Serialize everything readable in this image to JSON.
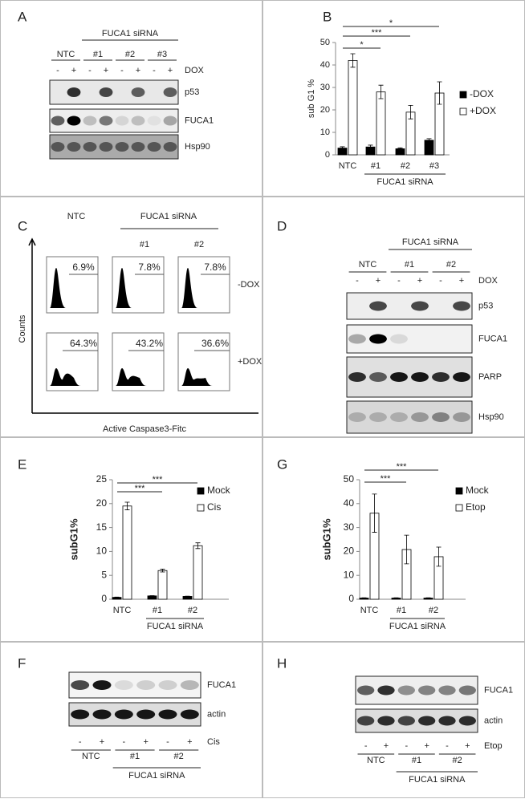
{
  "chart_data": [
    {
      "type": "bar",
      "panel": "B",
      "ylabel": "sub G1 %",
      "xlabel": "FUCA1 siRNA",
      "categories": [
        "NTC",
        "#1",
        "#2",
        "#3"
      ],
      "series": [
        {
          "name": "-DOX",
          "color": "#000000",
          "values": [
            3,
            3.5,
            2.7,
            6.5
          ],
          "errors": [
            0.6,
            0.8,
            0.4,
            0.7
          ]
        },
        {
          "name": "+DOX",
          "color": "#ffffff",
          "values": [
            42,
            28,
            19,
            27.5
          ],
          "errors": [
            3,
            3,
            3,
            5
          ]
        }
      ],
      "annotations": [
        "*",
        "***",
        "*"
      ],
      "ylim": [
        0,
        50
      ],
      "yticks": [
        0,
        10,
        20,
        30,
        40,
        50
      ]
    },
    {
      "type": "bar",
      "panel": "E",
      "ylabel": "subG1%",
      "xlabel": "FUCA1 siRNA",
      "categories": [
        "NTC",
        "#1",
        "#2"
      ],
      "series": [
        {
          "name": "Mock",
          "color": "#000000",
          "values": [
            0.4,
            0.7,
            0.6
          ],
          "errors": [
            0.05,
            0.05,
            0.05
          ]
        },
        {
          "name": "Cis",
          "color": "#ffffff",
          "values": [
            19.5,
            6,
            11.2
          ],
          "errors": [
            0.8,
            0.3,
            0.6
          ]
        }
      ],
      "annotations": [
        "***",
        "***"
      ],
      "ylim": [
        0,
        25
      ],
      "yticks": [
        0,
        5,
        10,
        15,
        20,
        25
      ]
    },
    {
      "type": "bar",
      "panel": "G",
      "ylabel": "subG1%",
      "xlabel": "FUCA1 siRNA",
      "categories": [
        "NTC",
        "#1",
        "#2"
      ],
      "series": [
        {
          "name": "Mock",
          "color": "#000000",
          "values": [
            0.5,
            0.5,
            0.5
          ],
          "errors": [
            0.1,
            0.1,
            0.1
          ]
        },
        {
          "name": "Etop",
          "color": "#ffffff",
          "values": [
            36,
            20.8,
            17.8
          ],
          "errors": [
            8,
            6,
            4
          ]
        }
      ],
      "annotations": [
        "***",
        "***"
      ],
      "ylim": [
        0,
        50
      ],
      "yticks": [
        0,
        10,
        20,
        30,
        40,
        50
      ]
    }
  ],
  "panels": {
    "A": {
      "letter": "A",
      "group": "FUCA1 siRNA",
      "lanes": [
        "NTC",
        "#1",
        "#2",
        "#3"
      ],
      "signs": [
        "-",
        "+"
      ],
      "treatment": "DOX",
      "blots": [
        "p53",
        "FUCA1",
        "Hsp90"
      ]
    },
    "C": {
      "letter": "C",
      "group": "FUCA1 siRNA",
      "columns": [
        "NTC",
        "#1",
        "#2"
      ],
      "rows": [
        "-DOX",
        "+DOX"
      ],
      "percents": [
        [
          "6.9%",
          "7.8%",
          "7.8%"
        ],
        [
          "64.3%",
          "43.2%",
          "36.6%"
        ]
      ],
      "ylabel": "Counts",
      "xlabel": "Active Caspase3-Fitc"
    },
    "D": {
      "letter": "D",
      "group": "FUCA1 siRNA",
      "lanes": [
        "NTC",
        "#1",
        "#2"
      ],
      "signs": [
        "-",
        "+"
      ],
      "treatment": "DOX",
      "blots": [
        "p53",
        "FUCA1",
        "PARP",
        "Hsp90"
      ]
    },
    "F": {
      "letter": "F",
      "group": "FUCA1 siRNA",
      "lanes": [
        "NTC",
        "#1",
        "#2"
      ],
      "signs": [
        "-",
        "+"
      ],
      "treatment": "Cis",
      "blots": [
        "FUCA1",
        "actin"
      ]
    },
    "H": {
      "letter": "H",
      "group": "FUCA1 siRNA",
      "lanes": [
        "NTC",
        "#1",
        "#2"
      ],
      "signs": [
        "-",
        "+"
      ],
      "treatment": "Etop",
      "blots": [
        "FUCA1",
        "actin"
      ]
    }
  }
}
